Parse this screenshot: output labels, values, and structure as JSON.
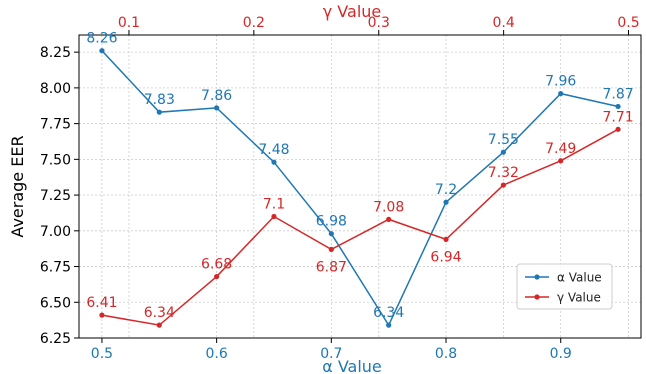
{
  "chart_data": {
    "type": "line",
    "ylabel": "Average EER",
    "ylim": [
      6.25,
      8.37
    ],
    "yticks": [
      "6.25",
      "6.50",
      "6.75",
      "7.00",
      "7.25",
      "7.50",
      "7.75",
      "8.00",
      "8.25"
    ],
    "bottom_axis": {
      "label": "α Value",
      "color": "#1f77b4",
      "ticks": [
        "0.5",
        "0.6",
        "0.7",
        "0.8",
        "0.9"
      ],
      "xlim": [
        0.48,
        0.97
      ]
    },
    "top_axis": {
      "label": "γ Value",
      "color": "#d62728",
      "ticks": [
        "0.1",
        "0.2",
        "0.3",
        "0.4",
        "0.5"
      ],
      "xlim": [
        0.06,
        0.51
      ]
    },
    "grid": true,
    "legend_position": "lower-right",
    "series": [
      {
        "name": "α Value",
        "color": "#1f77b4",
        "x": [
          0.5,
          0.55,
          0.6,
          0.65,
          0.7,
          0.75,
          0.8,
          0.85,
          0.9,
          0.95
        ],
        "values": [
          8.26,
          7.83,
          7.86,
          7.48,
          6.98,
          6.34,
          7.2,
          7.55,
          7.96,
          7.87
        ],
        "labels": [
          "8.26",
          "7.83",
          "7.86",
          "7.48",
          "6.98",
          "6.34",
          "7.2",
          "7.55",
          "7.96",
          "7.87"
        ]
      },
      {
        "name": "γ Value",
        "color": "#d62728",
        "x": [
          0.1,
          0.15,
          0.2,
          0.25,
          0.3,
          0.35,
          0.4,
          0.45,
          0.5,
          0.55
        ],
        "values": [
          6.41,
          6.34,
          6.68,
          7.1,
          6.87,
          7.08,
          6.94,
          7.32,
          7.49,
          7.71
        ],
        "labels": [
          "6.41",
          "6.34",
          "6.68",
          "7.1",
          "6.87",
          "7.08",
          "6.94",
          "7.32",
          "7.49",
          "7.71"
        ]
      }
    ]
  }
}
